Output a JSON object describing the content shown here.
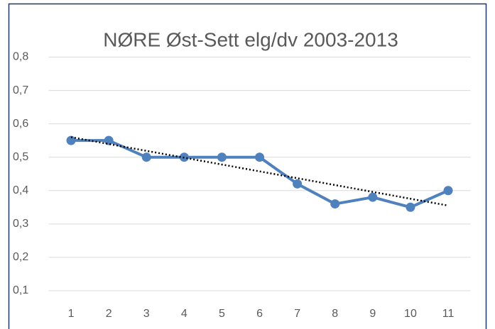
{
  "chart_data": {
    "type": "line",
    "title": "NØRE Øst-Sett elg/dv 2003-2013",
    "categories": [
      "1",
      "2",
      "3",
      "4",
      "5",
      "6",
      "7",
      "8",
      "9",
      "10",
      "11"
    ],
    "series": [
      {
        "color": "#4f81bd",
        "values": [
          0.55,
          0.55,
          0.5,
          0.5,
          0.5,
          0.5,
          0.42,
          0.36,
          0.38,
          0.35,
          0.4
        ]
      }
    ],
    "trendline": {
      "color": "#000000",
      "values": [
        0.56,
        0.355
      ]
    },
    "ylim": [
      0,
      0.8
    ],
    "yticks": [
      {
        "value": 0.1,
        "label": "0,1"
      },
      {
        "value": 0.2,
        "label": "0,2"
      },
      {
        "value": 0.3,
        "label": "0,3"
      },
      {
        "value": 0.4,
        "label": "0,4"
      },
      {
        "value": 0.5,
        "label": "0,5"
      },
      {
        "value": 0.6,
        "label": "0,6"
      },
      {
        "value": 0.7,
        "label": "0,7"
      },
      {
        "value": 0.8,
        "label": "0,8"
      }
    ],
    "grid": true
  }
}
